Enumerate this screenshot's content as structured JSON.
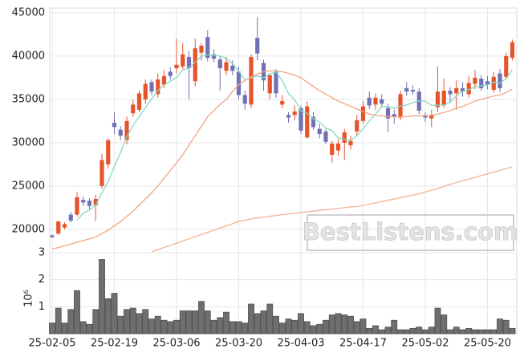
{
  "chart_data": [
    {
      "type": "candlestick",
      "categories": [
        "25-02-05",
        null,
        null,
        null,
        null,
        null,
        null,
        null,
        null,
        null,
        "25-02-19",
        null,
        null,
        null,
        null,
        null,
        null,
        null,
        null,
        null,
        "25-03-06",
        null,
        null,
        null,
        null,
        null,
        null,
        null,
        null,
        null,
        "25-03-20",
        null,
        null,
        null,
        null,
        null,
        null,
        null,
        null,
        null,
        "25-04-03",
        null,
        null,
        null,
        null,
        null,
        null,
        null,
        null,
        null,
        "25-04-17",
        null,
        null,
        null,
        null,
        null,
        null,
        null,
        null,
        null,
        "25-05-02",
        null,
        null,
        null,
        null,
        null,
        null,
        null,
        null,
        null,
        "25-05-20",
        null,
        null,
        null,
        null
      ],
      "open": [
        19300,
        19500,
        20200,
        21700,
        21700,
        23400,
        23300,
        22800,
        25000,
        27500,
        32300,
        31500,
        30300,
        33400,
        33800,
        35000,
        37000,
        35600,
        36700,
        38200,
        38600,
        38800,
        39900,
        37100,
        40400,
        42200,
        40200,
        39600,
        38300,
        38900,
        38200,
        35500,
        34400,
        42100,
        39200,
        35700,
        38200,
        34400,
        33200,
        33200,
        34000,
        30600,
        33000,
        31600,
        31300,
        28600,
        29100,
        30000,
        29700,
        31300,
        32500,
        35200,
        34400,
        35000,
        34000,
        33300,
        32900,
        36300,
        36100,
        35900,
        33200,
        32800,
        34100,
        34300,
        36000,
        35700,
        36300,
        35600,
        36800,
        37400,
        37100,
        36100,
        38000,
        37600,
        39800
      ],
      "high": [
        19400,
        21000,
        20800,
        22000,
        24300,
        23800,
        23600,
        24000,
        28700,
        30500,
        33500,
        31900,
        33000,
        35000,
        36000,
        37300,
        37300,
        38000,
        38400,
        38700,
        42000,
        41500,
        40600,
        42000,
        41500,
        43000,
        40800,
        40000,
        39900,
        39500,
        38800,
        36000,
        40200,
        44500,
        39600,
        38000,
        38500,
        35500,
        33500,
        34300,
        34300,
        34800,
        33500,
        32200,
        31600,
        30200,
        30400,
        31600,
        30800,
        33200,
        34800,
        35900,
        35700,
        35600,
        34500,
        33800,
        36000,
        37000,
        36600,
        36300,
        33500,
        33800,
        38800,
        37400,
        36400,
        37200,
        37000,
        37700,
        38400,
        37800,
        37700,
        38200,
        38500,
        40400,
        41900
      ],
      "low": [
        19000,
        19400,
        20000,
        20800,
        21500,
        22700,
        22300,
        21000,
        24700,
        27000,
        31000,
        30300,
        29800,
        33000,
        33500,
        34500,
        35500,
        35200,
        36300,
        37300,
        38000,
        38500,
        35000,
        36500,
        39500,
        39400,
        39300,
        36000,
        37800,
        37800,
        35000,
        33800,
        34000,
        39500,
        36000,
        35000,
        35200,
        34000,
        32300,
        32600,
        31000,
        30500,
        31500,
        30500,
        29800,
        27700,
        28500,
        28000,
        29200,
        30800,
        32200,
        33900,
        33800,
        34200,
        31200,
        32200,
        32600,
        35400,
        35500,
        33300,
        32400,
        31800,
        33600,
        34000,
        34600,
        33800,
        35300,
        35200,
        36200,
        36000,
        36200,
        35800,
        35800,
        37300,
        39500
      ],
      "close": [
        19100,
        20900,
        20600,
        21000,
        23700,
        23100,
        22700,
        23500,
        28000,
        30300,
        31800,
        30800,
        32500,
        34400,
        35700,
        36800,
        35900,
        37300,
        37700,
        37700,
        39000,
        40200,
        38600,
        40900,
        41200,
        39800,
        39700,
        38600,
        39300,
        38300,
        35500,
        34500,
        39900,
        40300,
        37200,
        37800,
        35700,
        34800,
        32900,
        33600,
        31400,
        34200,
        31800,
        31000,
        30100,
        29900,
        29900,
        31200,
        30200,
        32600,
        34200,
        34300,
        35200,
        34500,
        32800,
        33000,
        35600,
        35900,
        35900,
        33700,
        32900,
        33200,
        35900,
        36000,
        35600,
        36300,
        35900,
        36900,
        37500,
        36300,
        36700,
        37600,
        36300,
        40000,
        41600
      ],
      "up_color": "#e5542b",
      "down_color": "#7171b8",
      "series": [
        {
          "color": "#86d8c4",
          "values": [
            null,
            null,
            null,
            null,
            21060,
            21860,
            22220,
            22800,
            24200,
            25520,
            27260,
            28880,
            30680,
            31960,
            33040,
            34040,
            35060,
            36020,
            36680,
            37080,
            37520,
            38380,
            38640,
            39280,
            39980,
            40140,
            40040,
            40040,
            39720,
            39140,
            38280,
            37240,
            37500,
            37700,
            37480,
            37940,
            38180,
            37160,
            35680,
            34960,
            33680,
            33380,
            32780,
            32400,
            31700,
            31400,
            30540,
            30420,
            30260,
            30760,
            31620,
            32500,
            33300,
            34160,
            34200,
            33960,
            34220,
            34360,
            34640,
            34820,
            34800,
            34320,
            34320,
            34340,
            34720,
            35400,
            35940,
            36140,
            36440,
            36580,
            36660,
            37000,
            36880,
            37380,
            38440
          ]
        },
        {
          "color": "#f2a583",
          "values": [
            17700,
            17900,
            18100,
            18300,
            18500,
            18700,
            18900,
            19100,
            19500,
            19900,
            20400,
            20900,
            21500,
            22100,
            22800,
            23500,
            24200,
            25000,
            25900,
            26800,
            27700,
            28600,
            29700,
            30800,
            31900,
            33000,
            33700,
            34400,
            35000,
            35900,
            36700,
            37200,
            37600,
            37900,
            38200,
            38300,
            38300,
            38200,
            38000,
            37800,
            37500,
            37000,
            36500,
            36000,
            35600,
            35200,
            34800,
            34500,
            34200,
            33900,
            33600,
            33300,
            33200,
            33100,
            33000,
            33000,
            33000,
            33000,
            33100,
            33100,
            33100,
            33200,
            33300,
            33500,
            33700,
            34000,
            34200,
            34500,
            34800,
            35000,
            35200,
            35400,
            35500,
            35800,
            36200
          ]
        },
        {
          "color": "#f0b494",
          "values": [
            null,
            null,
            null,
            null,
            null,
            null,
            null,
            null,
            null,
            null,
            null,
            null,
            null,
            null,
            null,
            null,
            17400,
            17650,
            17900,
            18150,
            18400,
            18650,
            18900,
            19150,
            19400,
            19650,
            19900,
            20150,
            20400,
            20650,
            20900,
            21050,
            21200,
            21300,
            21400,
            21500,
            21600,
            21700,
            21780,
            21860,
            21940,
            22020,
            22100,
            22180,
            22260,
            22340,
            22420,
            22500,
            22580,
            22650,
            22750,
            22900,
            23050,
            23200,
            23350,
            23500,
            23650,
            23800,
            23950,
            24100,
            24300,
            24500,
            24700,
            24950,
            25200,
            25400,
            25600,
            25800,
            26000,
            26200,
            26400,
            26600,
            26800,
            27000,
            27200
          ]
        }
      ],
      "ylim": [
        17300,
        45550
      ],
      "yticks": [
        20000,
        25000,
        30000,
        35000,
        40000,
        45000
      ],
      "grid": true,
      "watermark": "BestListens.com"
    },
    {
      "type": "bar",
      "values": [
        0.4,
        0.95,
        0.4,
        0.9,
        1.6,
        0.45,
        0.35,
        0.9,
        2.75,
        1.3,
        1.5,
        0.65,
        0.9,
        0.95,
        0.75,
        0.9,
        0.55,
        0.65,
        0.5,
        0.45,
        0.5,
        0.85,
        0.85,
        0.85,
        1.2,
        0.85,
        0.5,
        0.6,
        0.8,
        0.45,
        0.45,
        0.4,
        1.1,
        0.75,
        0.85,
        1.1,
        0.65,
        0.4,
        0.55,
        0.5,
        0.75,
        0.45,
        0.3,
        0.35,
        0.5,
        0.7,
        0.75,
        0.7,
        0.65,
        0.45,
        0.55,
        0.2,
        0.3,
        0.15,
        0.25,
        0.5,
        0.15,
        0.15,
        0.2,
        0.25,
        0.15,
        0.25,
        0.95,
        0.7,
        0.15,
        0.25,
        0.15,
        0.2,
        0.15,
        0.15,
        0.15,
        0.15,
        0.55,
        0.5,
        0.2
      ],
      "color": "#6e6e6e",
      "ylim": [
        0,
        3
      ],
      "yticks": [
        1,
        2,
        3
      ],
      "ylabel": "10⁶",
      "grid": true
    }
  ]
}
